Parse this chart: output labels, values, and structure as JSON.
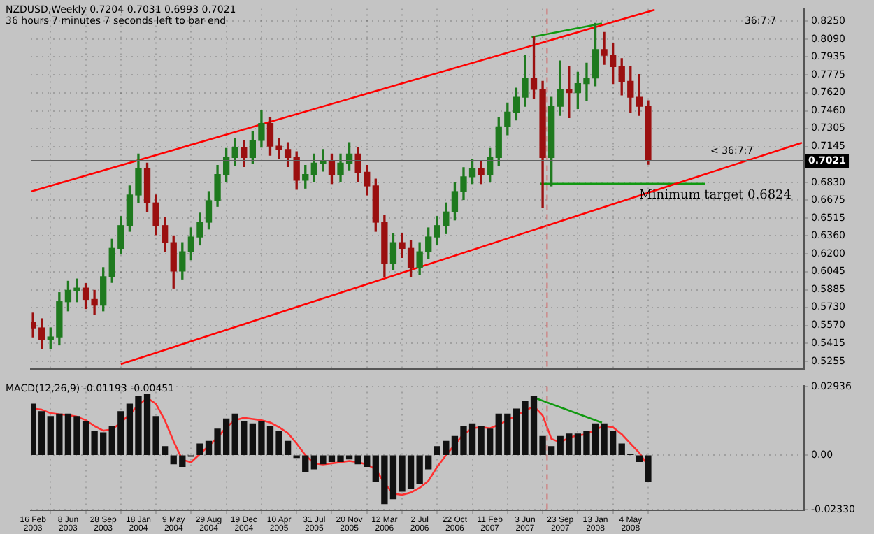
{
  "chart_data": [
    {
      "type": "candlestick",
      "title": "NZDUSD,Weekly  0.7204 0.7031 0.6993 0.7021",
      "subtitle": "36 hours 7 minutes 7 seconds left to bar end",
      "x": [
        "2003-02-16",
        "2003-03-16",
        "2003-04-13",
        "2003-05-11",
        "2003-06-08",
        "2003-07-06",
        "2003-08-03",
        "2003-08-31",
        "2003-09-28",
        "2003-10-26",
        "2003-11-23",
        "2003-12-21",
        "2004-01-18",
        "2004-02-15",
        "2004-03-14",
        "2004-04-11",
        "2004-05-09",
        "2004-06-06",
        "2004-07-04",
        "2004-08-01",
        "2004-08-29",
        "2004-09-26",
        "2004-10-24",
        "2004-11-21",
        "2004-12-19",
        "2005-01-16",
        "2005-02-13",
        "2005-03-13",
        "2005-04-10",
        "2005-05-08",
        "2005-06-05",
        "2005-07-03",
        "2005-07-31",
        "2005-08-28",
        "2005-09-25",
        "2005-10-23",
        "2005-11-20",
        "2005-12-18",
        "2006-01-15",
        "2006-02-12",
        "2006-03-12",
        "2006-04-09",
        "2006-05-07",
        "2006-06-04",
        "2006-07-02",
        "2006-07-30",
        "2006-08-27",
        "2006-09-24",
        "2006-10-22",
        "2006-11-19",
        "2006-12-17",
        "2007-01-14",
        "2007-02-11",
        "2007-03-11",
        "2007-04-08",
        "2007-05-06",
        "2007-06-03",
        "2007-07-01",
        "2007-07-29",
        "2007-08-26",
        "2007-09-23",
        "2007-10-21",
        "2007-11-18",
        "2007-12-16",
        "2008-01-13",
        "2008-02-10",
        "2008-03-09",
        "2008-04-06",
        "2008-05-04",
        "2008-06-01",
        "2008-06-29"
      ],
      "ohlc": [
        [
          0.56,
          0.568,
          0.547,
          0.555
        ],
        [
          0.555,
          0.563,
          0.537,
          0.545
        ],
        [
          0.545,
          0.555,
          0.537,
          0.547
        ],
        [
          0.547,
          0.586,
          0.54,
          0.578
        ],
        [
          0.578,
          0.596,
          0.57,
          0.588
        ],
        [
          0.588,
          0.598,
          0.578,
          0.59
        ],
        [
          0.59,
          0.594,
          0.572,
          0.58
        ],
        [
          0.58,
          0.588,
          0.567,
          0.575
        ],
        [
          0.575,
          0.608,
          0.57,
          0.6
        ],
        [
          0.6,
          0.633,
          0.595,
          0.625
        ],
        [
          0.625,
          0.653,
          0.62,
          0.645
        ],
        [
          0.645,
          0.68,
          0.64,
          0.672
        ],
        [
          0.672,
          0.708,
          0.665,
          0.695
        ],
        [
          0.695,
          0.7,
          0.657,
          0.665
        ],
        [
          0.665,
          0.672,
          0.637,
          0.645
        ],
        [
          0.645,
          0.652,
          0.622,
          0.63
        ],
        [
          0.63,
          0.636,
          0.59,
          0.605
        ],
        [
          0.605,
          0.63,
          0.598,
          0.622
        ],
        [
          0.622,
          0.643,
          0.615,
          0.635
        ],
        [
          0.635,
          0.656,
          0.628,
          0.648
        ],
        [
          0.648,
          0.675,
          0.642,
          0.667
        ],
        [
          0.667,
          0.698,
          0.662,
          0.69
        ],
        [
          0.69,
          0.713,
          0.684,
          0.705
        ],
        [
          0.705,
          0.722,
          0.698,
          0.714
        ],
        [
          0.714,
          0.72,
          0.697,
          0.705
        ],
        [
          0.705,
          0.728,
          0.7,
          0.72
        ],
        [
          0.72,
          0.746,
          0.714,
          0.735
        ],
        [
          0.735,
          0.74,
          0.707,
          0.715
        ],
        [
          0.715,
          0.722,
          0.704,
          0.712
        ],
        [
          0.712,
          0.718,
          0.697,
          0.705
        ],
        [
          0.705,
          0.71,
          0.677,
          0.685
        ],
        [
          0.685,
          0.698,
          0.678,
          0.69
        ],
        [
          0.69,
          0.708,
          0.684,
          0.7
        ],
        [
          0.7,
          0.712,
          0.693,
          0.702
        ],
        [
          0.702,
          0.708,
          0.682,
          0.69
        ],
        [
          0.69,
          0.708,
          0.684,
          0.7
        ],
        [
          0.7,
          0.718,
          0.694,
          0.708
        ],
        [
          0.708,
          0.714,
          0.684,
          0.692
        ],
        [
          0.692,
          0.698,
          0.672,
          0.68
        ],
        [
          0.68,
          0.686,
          0.64,
          0.648
        ],
        [
          0.648,
          0.654,
          0.6,
          0.612
        ],
        [
          0.612,
          0.638,
          0.606,
          0.63
        ],
        [
          0.63,
          0.638,
          0.617,
          0.625
        ],
        [
          0.625,
          0.632,
          0.6,
          0.608
        ],
        [
          0.608,
          0.63,
          0.602,
          0.622
        ],
        [
          0.622,
          0.643,
          0.616,
          0.635
        ],
        [
          0.635,
          0.653,
          0.628,
          0.645
        ],
        [
          0.645,
          0.665,
          0.638,
          0.657
        ],
        [
          0.657,
          0.683,
          0.65,
          0.675
        ],
        [
          0.675,
          0.696,
          0.668,
          0.688
        ],
        [
          0.688,
          0.703,
          0.682,
          0.695
        ],
        [
          0.695,
          0.702,
          0.682,
          0.69
        ],
        [
          0.69,
          0.713,
          0.684,
          0.705
        ],
        [
          0.705,
          0.74,
          0.698,
          0.732
        ],
        [
          0.732,
          0.753,
          0.725,
          0.745
        ],
        [
          0.745,
          0.766,
          0.738,
          0.758
        ],
        [
          0.758,
          0.795,
          0.75,
          0.775
        ],
        [
          0.775,
          0.811,
          0.757,
          0.765
        ],
        [
          0.765,
          0.772,
          0.661,
          0.705
        ],
        [
          0.705,
          0.758,
          0.68,
          0.75
        ],
        [
          0.75,
          0.79,
          0.742,
          0.765
        ],
        [
          0.765,
          0.785,
          0.74,
          0.762
        ],
        [
          0.762,
          0.78,
          0.748,
          0.77
        ],
        [
          0.77,
          0.788,
          0.755,
          0.775
        ],
        [
          0.775,
          0.823,
          0.768,
          0.8
        ],
        [
          0.8,
          0.815,
          0.787,
          0.795
        ],
        [
          0.795,
          0.805,
          0.77,
          0.785
        ],
        [
          0.785,
          0.792,
          0.76,
          0.772
        ],
        [
          0.772,
          0.785,
          0.745,
          0.758
        ],
        [
          0.758,
          0.778,
          0.742,
          0.75
        ],
        [
          0.75,
          0.755,
          0.699,
          0.702
        ]
      ],
      "colors": [
        "#9b1010",
        "#9b1010",
        "#1f7a1f",
        "#1f7a1f",
        "#1f7a1f",
        "#1f7a1f",
        "#9b1010",
        "#9b1010",
        "#1f7a1f",
        "#1f7a1f",
        "#1f7a1f",
        "#1f7a1f",
        "#1f7a1f",
        "#9b1010",
        "#9b1010",
        "#9b1010",
        "#9b1010",
        "#1f7a1f",
        "#1f7a1f",
        "#1f7a1f",
        "#1f7a1f",
        "#1f7a1f",
        "#1f7a1f",
        "#1f7a1f",
        "#9b1010",
        "#1f7a1f",
        "#1f7a1f",
        "#9b1010",
        "#9b1010",
        "#9b1010",
        "#9b1010",
        "#1f7a1f",
        "#1f7a1f",
        "#1f7a1f",
        "#9b1010",
        "#1f7a1f",
        "#1f7a1f",
        "#9b1010",
        "#9b1010",
        "#9b1010",
        "#9b1010",
        "#1f7a1f",
        "#9b1010",
        "#9b1010",
        "#1f7a1f",
        "#1f7a1f",
        "#1f7a1f",
        "#1f7a1f",
        "#1f7a1f",
        "#1f7a1f",
        "#1f7a1f",
        "#9b1010",
        "#1f7a1f",
        "#1f7a1f",
        "#1f7a1f",
        "#1f7a1f",
        "#1f7a1f",
        "#9b1010",
        "#9b1010",
        "#1f7a1f",
        "#1f7a1f",
        "#9b1010",
        "#1f7a1f",
        "#1f7a1f",
        "#1f7a1f",
        "#9b1010",
        "#9b1010",
        "#9b1010",
        "#9b1010",
        "#9b1010",
        "#9b1010"
      ],
      "series": [
        {
          "type": "line",
          "color": "#ff0000",
          "x": [
            "2003-02-09",
            "2008-07-20"
          ],
          "values": [
            0.675,
            0.835
          ]
        },
        {
          "type": "line",
          "color": "#ff0000",
          "x": [
            "2003-11-23",
            "2009-11-01"
          ],
          "values": [
            0.523,
            0.718
          ]
        },
        {
          "type": "line",
          "color": "#119911",
          "x": [
            "2007-06-24",
            "2008-02-03"
          ],
          "values": [
            0.811,
            0.823
          ]
        },
        {
          "type": "line",
          "color": "#119911",
          "x": [
            "2007-07-22",
            "2008-12-28"
          ],
          "values": [
            0.682,
            0.682
          ]
        }
      ],
      "xlim": [
        "2003-02-09",
        "2009-11-08"
      ],
      "xticks": [
        {
          "value": "2003-02-16",
          "label": null
        },
        {
          "value": "2003-06-08",
          "label": null
        },
        {
          "value": "2003-09-28",
          "label": null
        },
        {
          "value": "2004-01-18",
          "label": null
        },
        {
          "value": "2004-05-09",
          "label": null
        },
        {
          "value": "2004-08-29",
          "label": null
        },
        {
          "value": "2004-12-19",
          "label": null
        },
        {
          "value": "2005-04-10",
          "label": null
        },
        {
          "value": "2005-07-31",
          "label": null
        },
        {
          "value": "2005-11-20",
          "label": null
        },
        {
          "value": "2006-03-12",
          "label": null
        },
        {
          "value": "2006-07-02",
          "label": null
        },
        {
          "value": "2006-10-22",
          "label": null
        },
        {
          "value": "2007-02-11",
          "label": null
        },
        {
          "value": "2007-06-03",
          "label": null
        },
        {
          "value": "2007-09-23",
          "label": null
        },
        {
          "value": "2008-01-13",
          "label": null
        },
        {
          "value": "2008-05-04",
          "label": null
        }
      ],
      "ylim": [
        0.519,
        0.836
      ],
      "yticks": [
        {
          "value": 0.825,
          "label": "0.8250"
        },
        {
          "value": 0.809,
          "label": "0.8090"
        },
        {
          "value": 0.7935,
          "label": "0.7935"
        },
        {
          "value": 0.7775,
          "label": "0.7775"
        },
        {
          "value": 0.762,
          "label": "0.7620"
        },
        {
          "value": 0.746,
          "label": "0.7460"
        },
        {
          "value": 0.7305,
          "label": "0.7305"
        },
        {
          "value": 0.7145,
          "label": "0.7145"
        },
        {
          "value": 0.683,
          "label": "0.6830"
        },
        {
          "value": 0.6675,
          "label": "0.6675"
        },
        {
          "value": 0.6515,
          "label": "0.6515"
        },
        {
          "value": 0.636,
          "label": "0.6360"
        },
        {
          "value": 0.62,
          "label": "0.6200"
        },
        {
          "value": 0.6045,
          "label": "0.6045"
        },
        {
          "value": 0.5885,
          "label": "0.5885"
        },
        {
          "value": 0.573,
          "label": "0.5730"
        },
        {
          "value": 0.557,
          "label": "0.5570"
        },
        {
          "value": 0.5415,
          "label": "0.5415"
        },
        {
          "value": 0.5255,
          "label": "0.5255"
        }
      ],
      "ref_lines": [
        {
          "axis": "x",
          "value": "2007-08-12",
          "color": "#d07070",
          "line_style": "dashed"
        },
        {
          "axis": "y",
          "value": 0.7021,
          "label": "0.7021",
          "color": "#606060"
        }
      ],
      "annotations": [
        {
          "text": "Minimum target 0.6824",
          "x": "2008-06-01",
          "y": 0.6824
        },
        "36:7:7",
        "< 36:7:7"
      ],
      "grid": true,
      "tick_labels": "y"
    },
    {
      "type": "bar",
      "title": "MACD(12,26,9) -0.01193 -0.00451",
      "x": [
        "2003-02-16",
        "2003-03-16",
        "2003-04-13",
        "2003-05-11",
        "2003-06-08",
        "2003-07-06",
        "2003-08-03",
        "2003-08-31",
        "2003-09-28",
        "2003-10-26",
        "2003-11-23",
        "2003-12-21",
        "2004-01-18",
        "2004-02-15",
        "2004-03-14",
        "2004-04-11",
        "2004-05-09",
        "2004-06-06",
        "2004-07-04",
        "2004-08-01",
        "2004-08-29",
        "2004-09-26",
        "2004-10-24",
        "2004-11-21",
        "2004-12-19",
        "2005-01-16",
        "2005-02-13",
        "2005-03-13",
        "2005-04-10",
        "2005-05-08",
        "2005-06-05",
        "2005-07-03",
        "2005-07-31",
        "2005-08-28",
        "2005-09-25",
        "2005-10-23",
        "2005-11-20",
        "2005-12-18",
        "2006-01-15",
        "2006-02-12",
        "2006-03-12",
        "2006-04-09",
        "2006-05-07",
        "2006-06-04",
        "2006-07-02",
        "2006-07-30",
        "2006-08-27",
        "2006-09-24",
        "2006-10-22",
        "2006-11-19",
        "2006-12-17",
        "2007-01-14",
        "2007-02-11",
        "2007-03-11",
        "2007-04-08",
        "2007-05-06",
        "2007-06-03",
        "2007-07-01",
        "2007-07-29",
        "2007-08-26",
        "2007-09-23",
        "2007-10-21",
        "2007-11-18",
        "2007-12-16",
        "2008-01-13",
        "2008-02-10",
        "2008-03-09",
        "2008-04-06",
        "2008-05-04",
        "2008-06-01",
        "2008-06-29"
      ],
      "series": [
        {
          "type": "bar",
          "color": "#111111",
          "values": [
            0.0219,
            0.0187,
            0.0166,
            0.0176,
            0.0176,
            0.0166,
            0.0144,
            0.0101,
            0.0096,
            0.0123,
            0.0187,
            0.0219,
            0.0251,
            0.0262,
            0.0166,
            0.0037,
            -0.0037,
            -0.0048,
            -0.0005,
            0.0048,
            0.0059,
            0.0112,
            0.0155,
            0.0176,
            0.0144,
            0.0134,
            0.0144,
            0.0123,
            0.0101,
            0.0059,
            -0.001,
            -0.0069,
            -0.0059,
            -0.0037,
            -0.0027,
            -0.0027,
            -0.0016,
            -0.0037,
            -0.0048,
            -0.0112,
            -0.0208,
            -0.0187,
            -0.0155,
            -0.0144,
            -0.0123,
            -0.0059,
            0.0037,
            0.0059,
            0.008,
            0.0123,
            0.0134,
            0.0123,
            0.0112,
            0.0176,
            0.0176,
            0.0198,
            0.023,
            0.0251,
            0.008,
            0.0037,
            0.008,
            0.0091,
            0.0091,
            0.0101,
            0.0134,
            0.0134,
            0.0101,
            0.0048,
            0.0005,
            -0.0027,
            -0.0112
          ]
        },
        {
          "type": "line",
          "color": "#ff3030",
          "values": [
            0.02,
            0.0195,
            0.018,
            0.0175,
            0.0172,
            0.0165,
            0.015,
            0.0125,
            0.0105,
            0.011,
            0.014,
            0.0175,
            0.0215,
            0.0245,
            0.022,
            0.015,
            0.006,
            -0.002,
            -0.003,
            0.0005,
            0.004,
            0.0075,
            0.012,
            0.015,
            0.016,
            0.0155,
            0.015,
            0.014,
            0.012,
            0.0095,
            0.005,
            0.0,
            -0.0035,
            -0.004,
            -0.0035,
            -0.003,
            -0.0025,
            -0.003,
            -0.004,
            -0.006,
            -0.012,
            -0.0165,
            -0.017,
            -0.016,
            -0.014,
            -0.011,
            -0.005,
            0.0,
            0.0045,
            0.009,
            0.0115,
            0.012,
            0.0115,
            0.013,
            0.015,
            0.017,
            0.019,
            0.021,
            0.017,
            0.007,
            0.0055,
            0.0075,
            0.0085,
            0.009,
            0.011,
            0.0125,
            0.012,
            0.009,
            0.005,
            0.001,
            -0.0045
          ]
        },
        {
          "type": "line",
          "color": "#119911",
          "x": [
            "2007-06-24",
            "2008-02-03"
          ],
          "values": [
            0.0251,
            0.0139
          ]
        }
      ],
      "xlim": [
        "2003-02-09",
        "2009-11-08"
      ],
      "xticks": [
        {
          "value": "2003-02-16",
          "label": "16 Feb 2003"
        },
        {
          "value": "2003-06-08",
          "label": "8 Jun 2003"
        },
        {
          "value": "2003-09-28",
          "label": "28 Sep 2003"
        },
        {
          "value": "2004-01-18",
          "label": "18 Jan 2004"
        },
        {
          "value": "2004-05-09",
          "label": "9 May 2004"
        },
        {
          "value": "2004-08-29",
          "label": "29 Aug 2004"
        },
        {
          "value": "2004-12-19",
          "label": "19 Dec 2004"
        },
        {
          "value": "2005-04-10",
          "label": "10 Apr 2005"
        },
        {
          "value": "2005-07-31",
          "label": "31 Jul 2005"
        },
        {
          "value": "2005-11-20",
          "label": "20 Nov 2005"
        },
        {
          "value": "2006-03-12",
          "label": "12 Mar 2006"
        },
        {
          "value": "2006-07-02",
          "label": "2 Jul 2006"
        },
        {
          "value": "2006-10-22",
          "label": "22 Oct 2006"
        },
        {
          "value": "2007-02-11",
          "label": "11 Feb 2007"
        },
        {
          "value": "2007-06-03",
          "label": "3 Jun 2007"
        },
        {
          "value": "2007-09-23",
          "label": "23 Sep 2007"
        },
        {
          "value": "2008-01-13",
          "label": "13 Jan 2008"
        },
        {
          "value": "2008-05-04",
          "label": "4 May 2008"
        }
      ],
      "ylim": [
        -0.0236,
        0.0296
      ],
      "yticks": [
        {
          "value": 0.02936,
          "label": "0.02936"
        },
        {
          "value": 0,
          "label": "0.00"
        },
        {
          "value": -0.0233,
          "label": "-0.02330"
        }
      ],
      "ref_lines": [
        {
          "axis": "x",
          "value": "2007-08-12",
          "color": "#d07070",
          "line_style": "dashed"
        }
      ],
      "grid": true
    }
  ]
}
